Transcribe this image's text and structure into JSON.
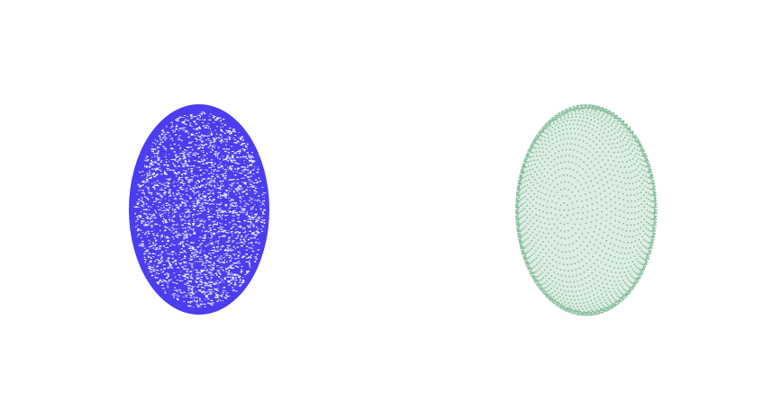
{
  "figures": [
    {
      "id": "random",
      "style": "random-points",
      "color": "#4b3df0"
    },
    {
      "id": "structured",
      "style": "structured-rings",
      "color": "#86bd9c"
    }
  ]
}
